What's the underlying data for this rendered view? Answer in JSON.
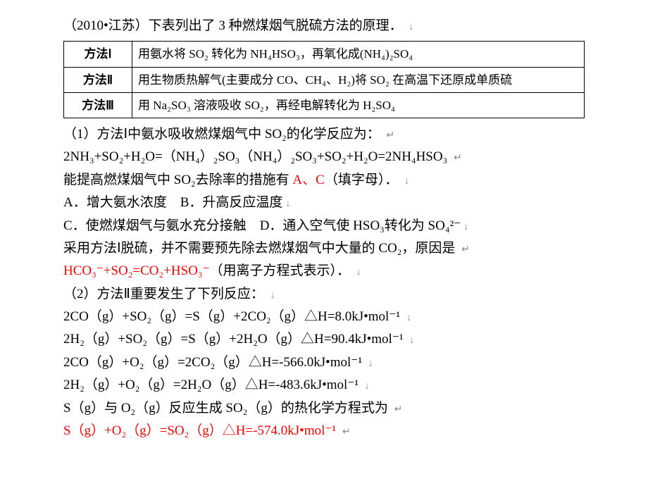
{
  "header": "（2010•江苏）下表列出了 3 种燃煤烟气脱硫方法的原理．",
  "table": {
    "rows": [
      [
        "方法Ⅰ",
        "用氨水将 SO₂ 转化为 NH₄HSO₃，再氧化成(NH₄)₂SO₄"
      ],
      [
        "方法Ⅱ",
        "用生物质热解气(主要成分 CO、CH₄、H₂)将 SO₂ 在高温下还原成单质硫"
      ],
      [
        "方法Ⅲ",
        "用 Na₂SO₃ 溶液吸收 SO₂，再经电解转化为 H₂SO₄"
      ]
    ]
  },
  "q1_line1": "（1）方法Ⅰ中氨水吸收燃煤烟气中 SO₂的化学反应为：",
  "q1_eq": "2NH₃+SO₂+H₂O=（NH₄）₂SO₃（NH₄）₂SO₃+SO₂+H₂O=2NH₄HSO₃",
  "q1_line2a": "能提高燃煤烟气中 SO₂去除率的措施有 ",
  "q1_ans": "A、C",
  "q1_line2b": "（填字母）．",
  "optA": "A．增大氨水浓度",
  "optB": "B．升高反应温度",
  "optC": "C．使燃煤烟气与氨水充分接触",
  "optD": "D．通入空气使 HSO₃转化为 SO₄²⁻",
  "q1_line3": "采用方法Ⅰ脱硫，并不需要预先除去燃煤烟气中大量的 CO₂，原因是",
  "q1_ion": "HCO₃⁻+SO₂=CO₂+HSO₃⁻",
  "q1_ion_tail": "（用离子方程式表示）．",
  "q2_line1": "（2）方法Ⅱ重要发生了下列反应：",
  "q2_eq1": "2CO（g）+SO₂（g）=S（g）+2CO₂（g）△H=8.0kJ•mol⁻¹",
  "q2_eq2": "2H₂（g）+SO₂（g）=S（g）+2H₂O（g）△H=90.4kJ•mol⁻¹",
  "q2_eq3": "2CO（g）+O₂（g）=2CO₂（g）△H=-566.0kJ•mol⁻¹",
  "q2_eq4": "2H₂（g）+O₂（g）=2H₂O（g）△H=-483.6kJ•mol⁻¹",
  "q2_line2": "S（g）与 O₂（g）反应生成 SO₂（g）的热化学方程式为",
  "q2_ans": "S（g）+O₂（g）=SO₂（g）△H=-574.0kJ•mol⁻¹",
  "arrow_down": "↓",
  "arrow_ret": "↵"
}
